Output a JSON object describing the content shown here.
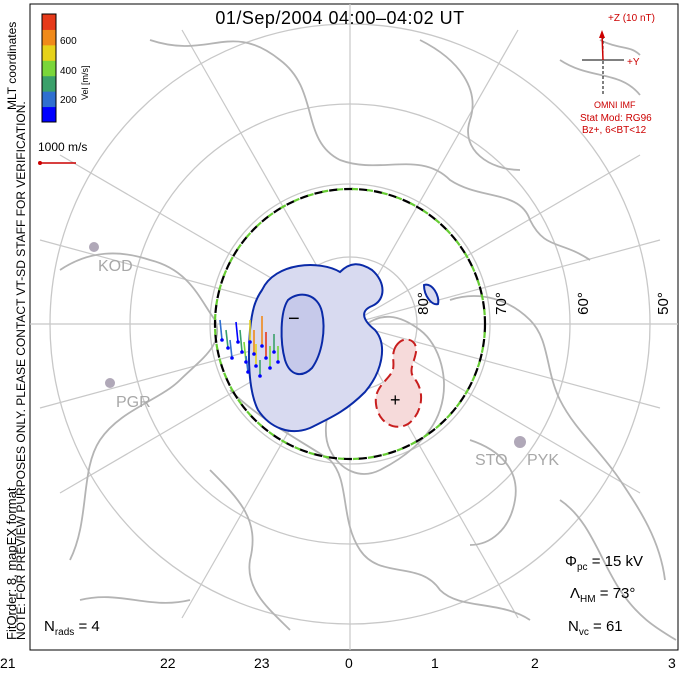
{
  "title": "01/Sep/2004 04:00–04:02 UT",
  "left_notes": {
    "line1": "NOTE: FOR PREVIEW PURPOSES ONLY. PLEASE CONTACT VT-SD STAFF FOR VERIFICATION.",
    "line2": "FitOrder: 8, mapEX format",
    "coords": "MLT coordinates"
  },
  "colorbar": {
    "title": "Vel [m/s]",
    "ticks": [
      "600",
      "400",
      "200"
    ],
    "colors": [
      "#0000ff",
      "#2f6fd0",
      "#3aa06a",
      "#7ad63a",
      "#e6d21a",
      "#f08a1a",
      "#e63a1a"
    ]
  },
  "scale_vector": {
    "label": "1000 m/s",
    "color": "#cc0000"
  },
  "imf": {
    "z_label": "+Z (10 nT)",
    "y_label": "+Y",
    "source": "OMNI IMF",
    "model_line1": "Stat Mod: RG96",
    "model_line2": "Bz+, 6<BT<12"
  },
  "latitude_labels": [
    "80°",
    "70°",
    "60°",
    "50°"
  ],
  "stations": [
    "KOD",
    "PGR",
    "STO",
    "PYK"
  ],
  "potential_markers": {
    "min": "−",
    "max": "+"
  },
  "stats": {
    "phi_symbol": "Φ",
    "phi_sub": "pc",
    "phi_value": "= 15 kV",
    "lambda_symbol": "Λ",
    "lambda_sub": "HM",
    "lambda_value": "= 73°",
    "nvc_symbol": "N",
    "nvc_sub": "vc",
    "nvc_value": "= 61",
    "nrads_symbol": "N",
    "nrads_sub": "rads",
    "nrads_value": "= 4"
  },
  "mlt_axis": [
    "21",
    "22",
    "23",
    "0",
    "1",
    "2",
    "3"
  ],
  "colors": {
    "grid": "#c8c8c8",
    "coast": "#b4b4b4",
    "negative_contour": "#0a2aa8",
    "negative_fill": "#d8daf0",
    "positive_contour": "#c81e1e",
    "positive_fill": "#f6dada",
    "hm_boundary_green": "#66cc33"
  }
}
